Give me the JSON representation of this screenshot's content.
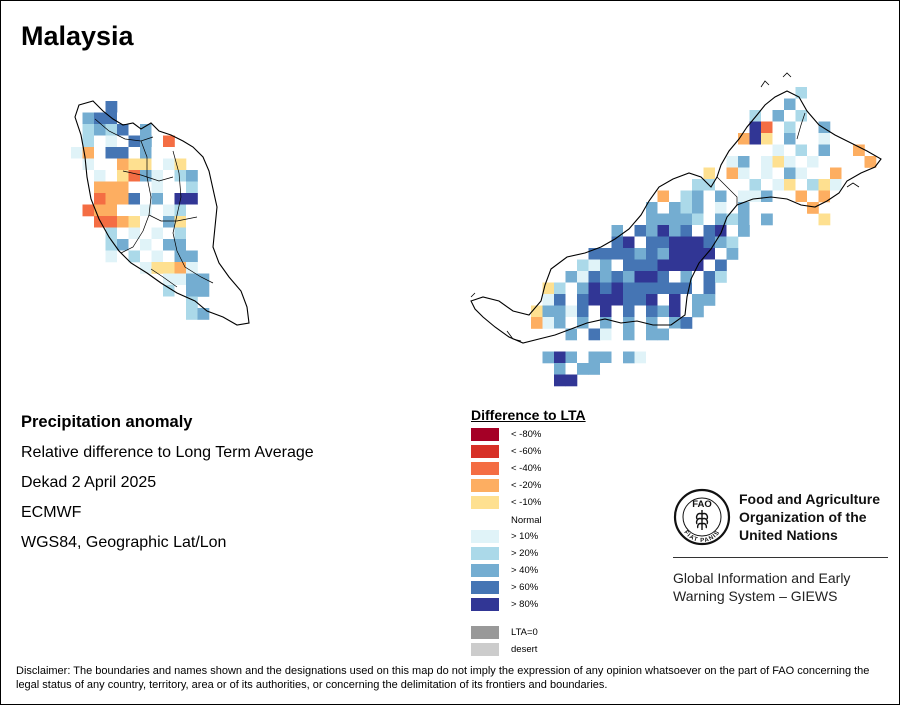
{
  "title": "Malaysia",
  "info": {
    "heading": "Precipitation anomaly",
    "line1": "Relative difference to Long Term Average",
    "line2": "Dekad 2 April 2025",
    "line3": "ECMWF",
    "line4": "WGS84, Geographic Lat/Lon"
  },
  "legend": {
    "title": "Difference to LTA",
    "items": [
      {
        "label": "< -80%",
        "color": "#A50026"
      },
      {
        "label": "< -60%",
        "color": "#D73027"
      },
      {
        "label": "< -40%",
        "color": "#F46D43"
      },
      {
        "label": "< -20%",
        "color": "#FDAE61"
      },
      {
        "label": "< -10%",
        "color": "#FEE090"
      },
      {
        "label": "Normal",
        "color": "#FFFFFF"
      },
      {
        "label": "> 10%",
        "color": "#E0F3F8"
      },
      {
        "label": "> 20%",
        "color": "#ABD9E9"
      },
      {
        "label": "> 40%",
        "color": "#74ADD1"
      },
      {
        "label": "> 60%",
        "color": "#4575B4"
      },
      {
        "label": "> 80%",
        "color": "#313695"
      }
    ],
    "extra": [
      {
        "label": "LTA=0",
        "color": "#999999"
      },
      {
        "label": "desert",
        "color": "#CCCCCC"
      }
    ]
  },
  "org": {
    "name_lines": [
      "Food and Agriculture",
      "Organization of the",
      "United Nations"
    ],
    "logo_text": "FAO",
    "logo_motto": "FIAT PANIS",
    "system_lines": [
      "Global Information and Early",
      "Warning System – GIEWS"
    ]
  },
  "disclaimer": "Disclaimer: The boundaries and names shown and the designations used on this map do not imply the expression of any opinion whatsoever on the part of FAO concerning the legal status of any country, territory, area or of its authorities, or concerning the delimitation of its frontiers and boundaries.",
  "map_colors": {
    "outline": "#000000",
    "class_codes": "n=normal, 1=>10%, 2=>20%, 4=>40%, 6=>60%, 8=>80%, a=<-10%, b=<-20%, c=<-40%"
  },
  "anomaly_grid": {
    "peninsular": [
      "..n6........",
      ".466n.n.....",
      ".2426n4n....",
      ".2n1n64.c...",
      "1bn66n4nn...",
      "n1nnbaan1a..",
      ".n1nac41n24.",
      ".nbbbnn1nn2.",
      ".ncbb6n4n88.",
      ".cbbnn1n12n.",
      "..ccbann4ann",
      "..n2n1n1n2n.",
      "...24n1n44n.",
      "...1n2n1n44.",
      "......1aab1.",
      "........1144",
      ".......n2n44",
      "........nn2.",
      "..........24"
    ],
    "borneo": [
      "......................n2n.....",
      ".....................n4nn.....",
      "...................2n4n2n.....",
      "...................8cn2nn4....",
      "..................b8an4nn1n...",
      "................nnnnn1n2n4nnb.",
      "................n14n1a1n1nnnnb",
      "...............anb1n1n41nnbnn.",
      "..............22nnn2n1an2a1n..",
      "...........bn24n4n114nnbnbn...",
      "..........4n424n1n4nnnnnb.....",
      ".........n44442n424n4..n.a....",
      ".......4n64846n68n4...........",
      "......n68n66888642............",
      ".....66664648888n4............",
      "....214n6668888n6.............",
      "...416464886n4n62.............",
      ".a2n4868666666n6..............",
      ".16n6888668n8n44..............",
      "a4416n8n6n648n4...............",
      "b14n4n4n4n4n46................",
      "..n4n61n4n44n.................",
      "",
      ".484n44n41n...................",
      "..4n44n.......................",
      "..88.........................."
    ]
  }
}
